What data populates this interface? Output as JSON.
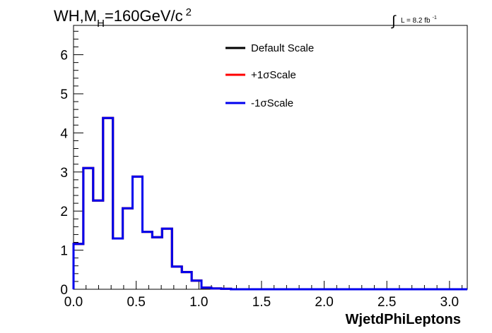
{
  "chart_data": {
    "type": "line",
    "step": true,
    "title": {
      "prefix": "WH,M",
      "sub": "H",
      "mid": "=160GeV/c",
      "sup": "2"
    },
    "lumi": {
      "symbol": "∫",
      "text": "L = 8.2 fb",
      "sup": "-1"
    },
    "xlabel": "WjetdPhiLeptons",
    "ylabel": "",
    "xlim": [
      0,
      3.1416
    ],
    "ylim": [
      0,
      6.75
    ],
    "x_ticks": [
      0,
      0.5,
      1.0,
      1.5,
      2.0,
      2.5,
      3.0
    ],
    "x_tick_labels": [
      "0.0",
      "0.5",
      "1.0",
      "1.5",
      "2.0",
      "2.5",
      "3.0"
    ],
    "y_ticks": [
      0,
      1,
      2,
      3,
      4,
      5,
      6
    ],
    "y_tick_labels": [
      "0",
      "1",
      "2",
      "3",
      "4",
      "5",
      "6"
    ],
    "grid": false,
    "legend_position": "top-center",
    "bin_edges": [
      0,
      0.0785,
      0.157,
      0.2356,
      0.3142,
      0.3927,
      0.4712,
      0.5498,
      0.6283,
      0.7069,
      0.7854,
      0.8639,
      0.9425,
      1.021,
      1.0996,
      1.1781,
      1.2566,
      1.3352,
      1.4137,
      1.4923,
      1.5708,
      1.6493,
      1.7279,
      1.8064,
      1.885,
      1.9635,
      2.042,
      2.1206,
      2.1991,
      2.2777,
      2.3562,
      2.4347,
      2.5133,
      2.5918,
      2.6704,
      2.7489,
      2.8274,
      2.906,
      2.9845,
      3.0631,
      3.1416
    ],
    "series": [
      {
        "name": "Default Scale",
        "color": "#000000",
        "values": [
          1.16,
          3.1,
          2.27,
          4.38,
          1.3,
          2.07,
          2.88,
          1.47,
          1.33,
          1.55,
          0.58,
          0.44,
          0.22,
          0.04,
          0.02,
          0.01,
          0,
          0,
          0,
          0,
          0,
          0,
          0,
          0,
          0,
          0,
          0,
          0,
          0,
          0,
          0,
          0,
          0,
          0,
          0,
          0,
          0,
          0,
          0,
          0
        ]
      },
      {
        "name": "+1σScale",
        "color": "#ff0000",
        "values": [
          1.16,
          3.1,
          2.27,
          4.38,
          1.3,
          2.07,
          2.88,
          1.47,
          1.33,
          1.55,
          0.58,
          0.44,
          0.22,
          0.04,
          0.02,
          0.01,
          0,
          0,
          0,
          0,
          0,
          0,
          0,
          0,
          0,
          0,
          0,
          0,
          0,
          0,
          0,
          0,
          0,
          0,
          0,
          0,
          0,
          0,
          0,
          0
        ]
      },
      {
        "name": "-1σScale",
        "color": "#0000ee",
        "values": [
          1.16,
          3.1,
          2.27,
          4.38,
          1.3,
          2.07,
          2.88,
          1.47,
          1.33,
          1.55,
          0.58,
          0.44,
          0.22,
          0.04,
          0.02,
          0.01,
          0,
          0,
          0,
          0,
          0,
          0,
          0,
          0,
          0,
          0,
          0,
          0,
          0,
          0,
          0,
          0,
          0,
          0,
          0,
          0,
          0,
          0,
          0,
          0
        ]
      }
    ]
  }
}
